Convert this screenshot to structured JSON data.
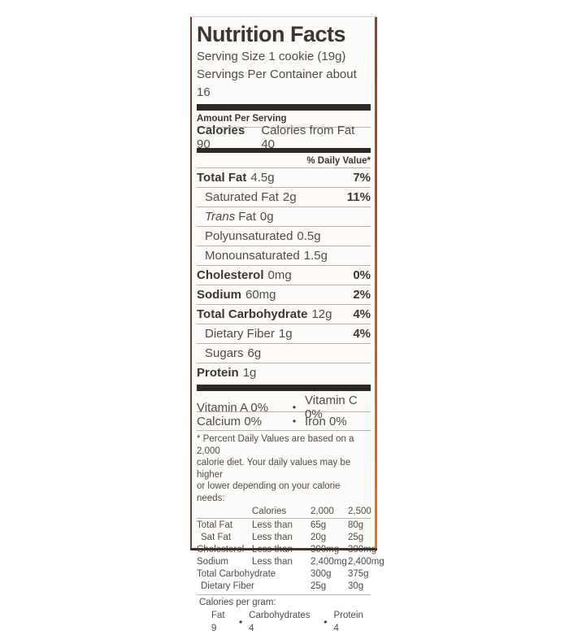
{
  "label": {
    "title": "Nutrition Facts",
    "serving_size": "Serving Size 1 cookie (19g)",
    "servings_per_container": "Servings Per Container about 16",
    "amount_per_serving": "Amount Per Serving",
    "calories": {
      "label": "Calories",
      "value": "90",
      "from_fat": "Calories from Fat 40"
    },
    "daily_value_header": "% Daily Value*",
    "nutrients": [
      {
        "name": "Total Fat",
        "amount": "4.5g",
        "dv": "7%"
      },
      {
        "name": "Saturated Fat",
        "amount": "2g",
        "dv": "11%"
      },
      {
        "name_italic": "Trans",
        "name": "Fat",
        "amount": "0g",
        "dv": ""
      },
      {
        "name": "Polyunsaturated",
        "amount": "0.5g",
        "dv": ""
      },
      {
        "name": "Monounsaturated",
        "amount": "1.5g",
        "dv": ""
      },
      {
        "name": "Cholesterol",
        "amount": "0mg",
        "dv": "0%"
      },
      {
        "name": "Sodium",
        "amount": "60mg",
        "dv": "2%"
      },
      {
        "name": "Total Carbohydrate",
        "amount": "12g",
        "dv": "4%"
      },
      {
        "name": "Dietary Fiber",
        "amount": "1g",
        "dv": "4%"
      },
      {
        "name": "Sugars",
        "amount": "6g",
        "dv": ""
      },
      {
        "name": "Protein",
        "amount": "1g",
        "dv": ""
      }
    ],
    "vitamins": {
      "bullet": "•",
      "rows": [
        {
          "left": "Vitamin A 0%",
          "right": "Vitamin C 0%"
        },
        {
          "left": "Calcium 0%",
          "right": "Iron 0%"
        }
      ]
    },
    "footnote_lines": [
      "* Percent Daily Values are based on a 2,000",
      "calorie diet.  Your daily values may be higher",
      "or lower depending on your calorie needs:"
    ],
    "dv_table": {
      "header": [
        "",
        "Calories",
        "2,000",
        "2,500"
      ],
      "rows": [
        {
          "c0": "Total Fat",
          "c1": "Less than",
          "c2": "65g",
          "c3": "80g"
        },
        {
          "c0": "Sat Fat",
          "c1": "Less than",
          "c2": "20g",
          "c3": "25g"
        },
        {
          "c0": "Cholesterol",
          "c1": "Less than",
          "c2": "300mg",
          "c3": "300mg"
        },
        {
          "c0": "Sodium",
          "c1": "Less than",
          "c2": "2,400mg",
          "c3": "2,400mg"
        },
        {
          "c0": "Total Carbohydrate",
          "c1": "",
          "c2": "300g",
          "c3": "375g"
        },
        {
          "c0": "Dietary Fiber",
          "c1": "",
          "c2": "25g",
          "c3": "30g"
        }
      ]
    },
    "calories_per_gram": {
      "label": "Calories per gram:",
      "bullet": "•",
      "items": [
        "Fat 9",
        "Carbohydrates 4",
        "Protein 4"
      ]
    },
    "colors": {
      "bar": "#2d2a26",
      "text": "#4f4b46",
      "text_bold": "#3a3732",
      "border_left": "#6e4338",
      "border_right_top": "#7d4936",
      "border_right_bottom": "#e8741e",
      "border_bottom": "#3c342c"
    }
  }
}
